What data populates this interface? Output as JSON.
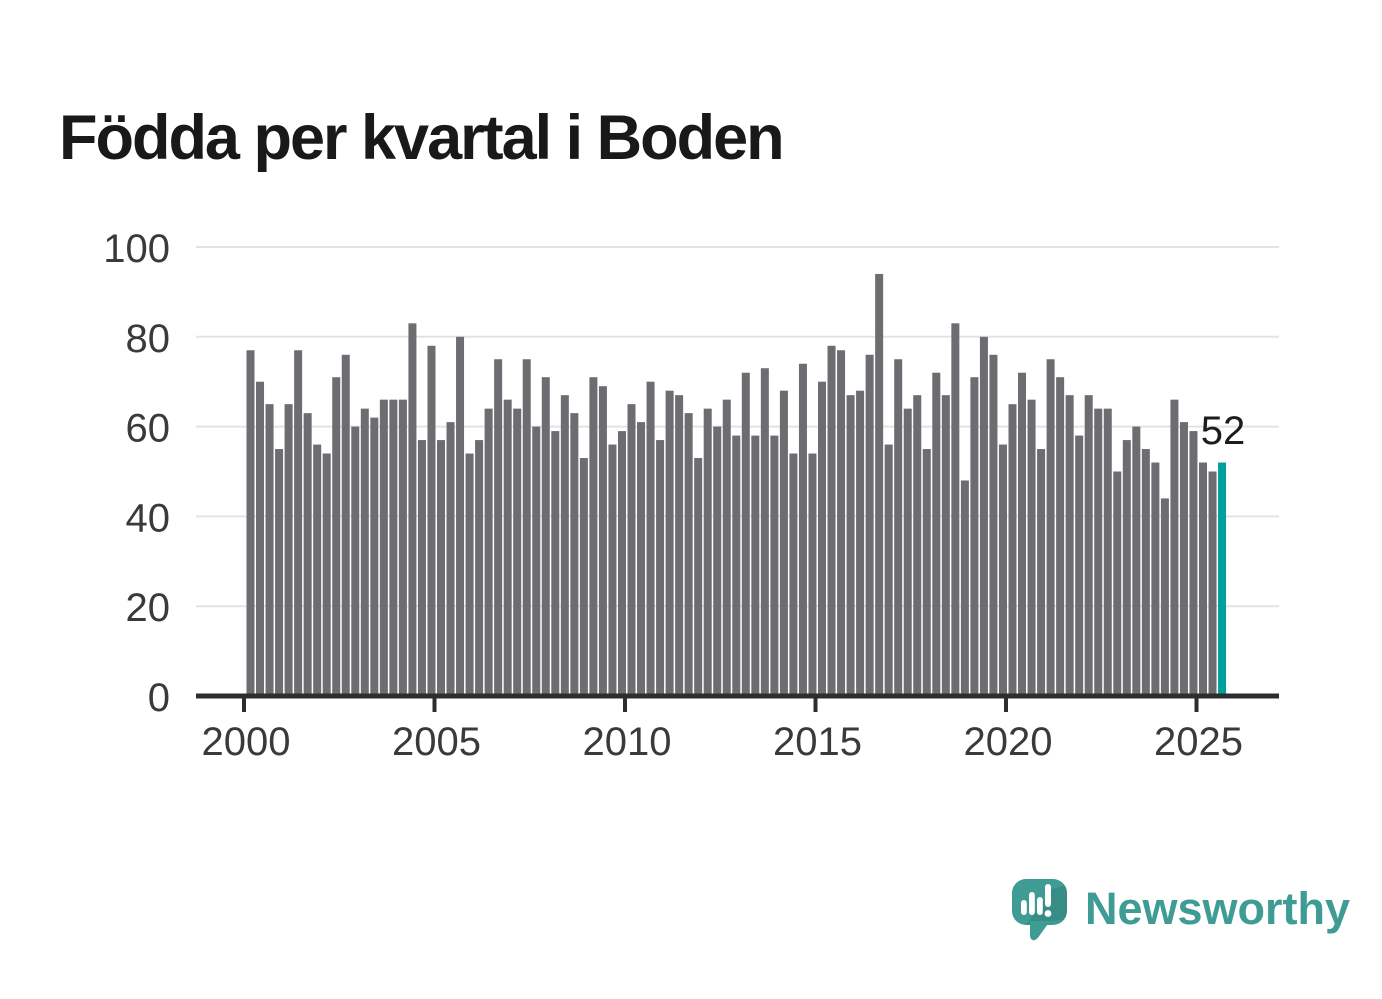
{
  "header": {
    "title": "Födda per kvartal i Boden"
  },
  "colors": {
    "bar": "#6c6c71",
    "highlight": "#00a0a1",
    "axis": "#2d2d2d",
    "grid": "#e3e3e3",
    "tick_label": "#3a3a3a",
    "title": "#191919",
    "annotation": "#1c1c1c",
    "logo": "#3e9c95"
  },
  "chart_data": {
    "type": "bar",
    "title": "Födda per kvartal i Boden",
    "frequency": "quarterly",
    "x_start": {
      "year": 2000,
      "quarter": 1
    },
    "x_end": {
      "year": 2025,
      "quarter": 3
    },
    "values": [
      77,
      70,
      65,
      55,
      65,
      77,
      63,
      56,
      54,
      71,
      76,
      60,
      64,
      62,
      66,
      66,
      66,
      83,
      57,
      78,
      57,
      61,
      80,
      54,
      57,
      64,
      75,
      66,
      64,
      75,
      60,
      71,
      59,
      67,
      63,
      53,
      71,
      69,
      56,
      59,
      65,
      61,
      70,
      57,
      68,
      67,
      63,
      53,
      64,
      60,
      66,
      58,
      72,
      58,
      73,
      58,
      68,
      54,
      74,
      54,
      70,
      78,
      77,
      67,
      68,
      76,
      94,
      56,
      75,
      64,
      67,
      55,
      72,
      67,
      83,
      48,
      71,
      80,
      76,
      56,
      65,
      72,
      66,
      55,
      75,
      71,
      67,
      58,
      67,
      64,
      64,
      50,
      57,
      60,
      55,
      52,
      44,
      66,
      61,
      59,
      52,
      50,
      52
    ],
    "y_ticks": [
      0,
      20,
      40,
      60,
      80,
      100
    ],
    "x_ticks": [
      2000,
      2005,
      2010,
      2015,
      2020,
      2025
    ],
    "ylim": [
      0,
      100
    ],
    "grid": true,
    "legend": "none",
    "highlight": {
      "index": 102,
      "value": 52,
      "label": "52"
    }
  },
  "logo": {
    "text": "Newsworthy"
  }
}
